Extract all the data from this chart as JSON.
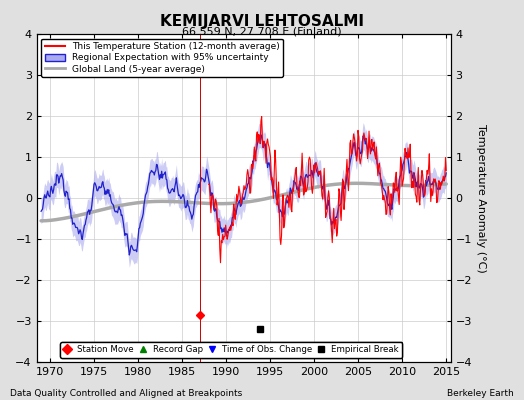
{
  "title": "KEMIJARVI LEHTOSALMI",
  "subtitle": "66.559 N, 27.708 E (Finland)",
  "ylabel": "Temperature Anomaly (°C)",
  "xlabel_left": "Data Quality Controlled and Aligned at Breakpoints",
  "xlabel_right": "Berkeley Earth",
  "ylim": [
    -4,
    4
  ],
  "xlim": [
    1968.5,
    2015.5
  ],
  "xticks": [
    1970,
    1975,
    1980,
    1985,
    1990,
    1995,
    2000,
    2005,
    2010,
    2015
  ],
  "yticks": [
    -4,
    -3,
    -2,
    -1,
    0,
    1,
    2,
    3,
    4
  ],
  "legend_entries": [
    "This Temperature Station (12-month average)",
    "Regional Expectation with 95% uncertainty",
    "Global Land (5-year average)"
  ],
  "station_move_x": 1987.0,
  "station_move_marker_y": -2.85,
  "empirical_break_x": 1993.8,
  "empirical_break_y": -3.2,
  "bg_color": "#e0e0e0",
  "plot_bg_color": "#ffffff",
  "station_color": "#ff0000",
  "regional_color": "#2222cc",
  "regional_fill_color": "#aaaaee",
  "global_color": "#aaaaaa",
  "title_fontsize": 11,
  "subtitle_fontsize": 8,
  "tick_fontsize": 8,
  "label_fontsize": 8
}
